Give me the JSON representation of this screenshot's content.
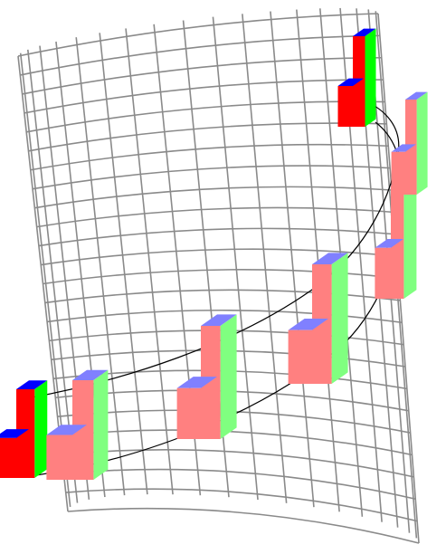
{
  "colors": {
    "background": "#ffffff",
    "grid": "#8a8a8a",
    "path": "#000000",
    "start_block": {
      "front": "#ff0000",
      "side": "#00ff00",
      "top": "#0000ff"
    },
    "moving_block": {
      "front": "#ff8080",
      "side": "#80ff80",
      "top": "#8080ff"
    }
  },
  "scene": {
    "object": "cylinder-wireframe",
    "path": "helix-trajectory",
    "block_shape": "L-shaped-block",
    "start_block_count": 2,
    "moving_block_count": 5
  }
}
